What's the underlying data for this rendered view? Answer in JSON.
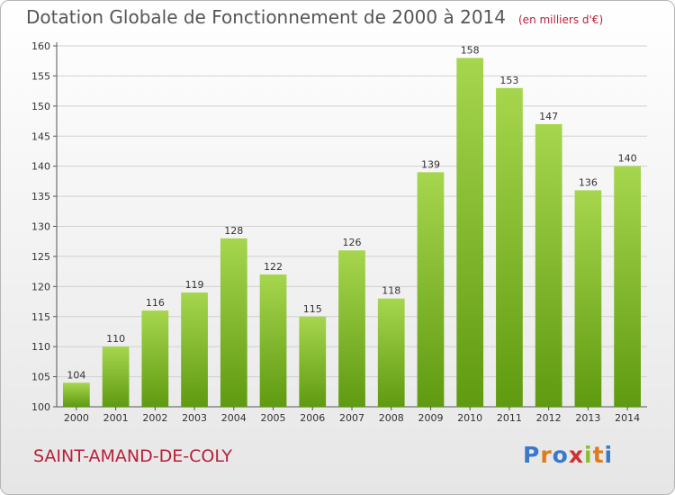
{
  "header": {
    "title": "Dotation Globale de Fonctionnement de 2000 à 2014",
    "unit": "(en milliers d'€)"
  },
  "footer": {
    "commune": "SAINT-AMAND-DE-COLY",
    "logo": [
      "P",
      "r",
      "o",
      "x",
      "i",
      "t",
      "i"
    ],
    "logo_colors": [
      "#3a78c8",
      "#e07b1a",
      "#3a78c8",
      "#d03030",
      "#8bbe2d",
      "#e07b1a",
      "#3a78c8"
    ]
  },
  "colors": {
    "bar_top": "#a6d64e",
    "bar_bottom": "#5f9a10",
    "grid": "#d0d0d0"
  },
  "chart_data": {
    "type": "bar",
    "title": "Dotation Globale de Fonctionnement de 2000 à 2014",
    "subtitle": "(en milliers d'€)",
    "categories": [
      "2000",
      "2001",
      "2002",
      "2003",
      "2004",
      "2005",
      "2006",
      "2007",
      "2008",
      "2009",
      "2010",
      "2011",
      "2012",
      "2013",
      "2014"
    ],
    "values": [
      104,
      110,
      116,
      119,
      128,
      122,
      115,
      126,
      118,
      139,
      158,
      153,
      147,
      136,
      140
    ],
    "ylim": [
      100,
      160
    ],
    "yticks": [
      100,
      105,
      110,
      115,
      120,
      125,
      130,
      135,
      140,
      145,
      150,
      155,
      160
    ],
    "grid": true
  }
}
